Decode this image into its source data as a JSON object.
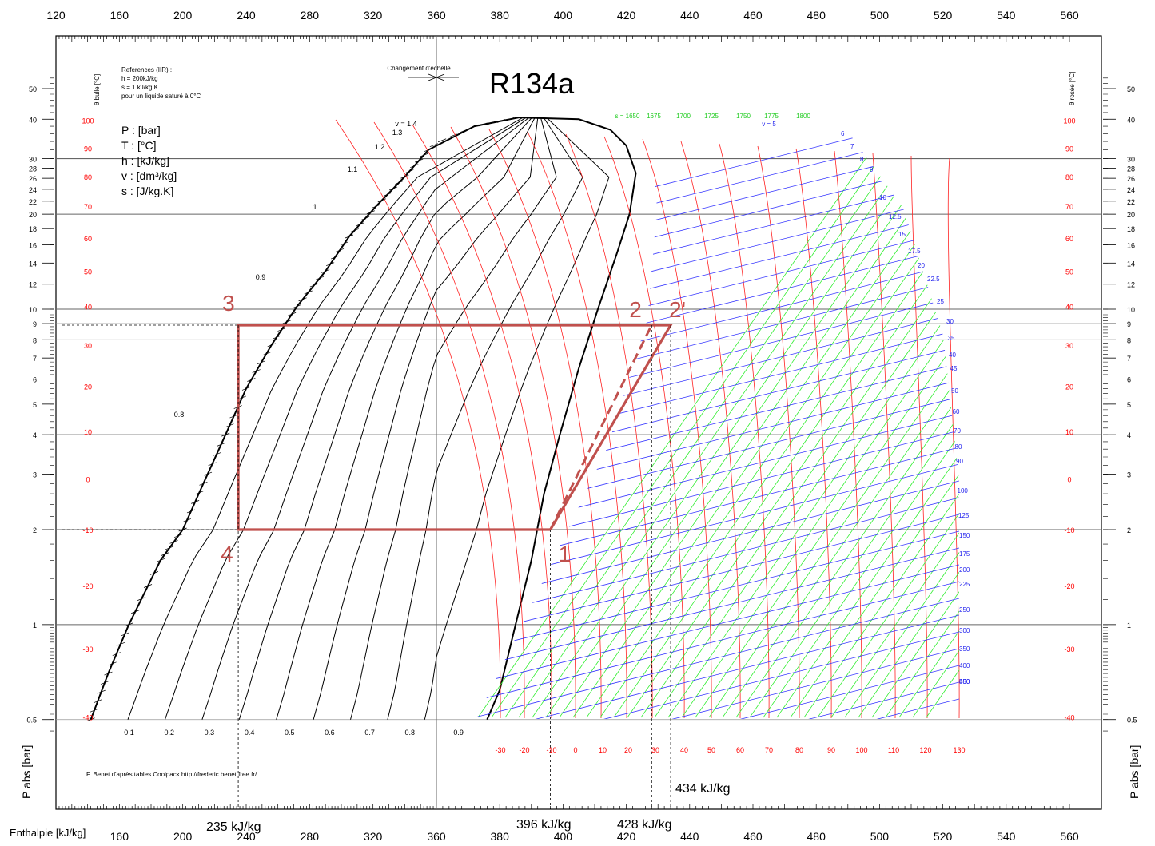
{
  "chart_data": {
    "type": "line",
    "title": "R134a",
    "xlabel": "Enthalpie [kJ/kg]",
    "ylabel": "P abs [bar]",
    "x_scale": "piecewise linear (scale change at 360 kJ/kg)",
    "y_scale": "log",
    "xlim": [
      120,
      560
    ],
    "ylim": [
      0.45,
      60
    ],
    "top_ticks": [
      120,
      160,
      200,
      240,
      280,
      320,
      360,
      380,
      400,
      420,
      440,
      460,
      480,
      500,
      520,
      540,
      560
    ],
    "bottom_ticks": [
      160,
      200,
      240,
      280,
      320,
      360,
      380,
      400,
      420,
      440,
      460,
      480,
      500,
      520,
      540,
      560
    ],
    "pressure_ticks": [
      0.5,
      1,
      2,
      3,
      4,
      5,
      6,
      7,
      8,
      9,
      10,
      12,
      14,
      16,
      18,
      20,
      22,
      24,
      26,
      28,
      30,
      40,
      50
    ],
    "temp_labels_left": [
      100,
      90,
      80,
      70,
      60,
      50,
      40,
      30,
      20,
      10,
      0,
      -10,
      -20,
      -30,
      -40
    ],
    "temp_labels_right": [
      100,
      90,
      80,
      70,
      60,
      50,
      40,
      30,
      20,
      10,
      0,
      -10,
      -20,
      -30,
      -40
    ],
    "axis_side_left": "θ bulle [°C]",
    "axis_side_right": "θ rosée [°C]",
    "scale_change": "Changement d'échelle",
    "reference_lines": [
      "References (IIR) :",
      "h = 200kJ/kg",
      "s = 1 kJ/kg.K",
      "pour un liquide saturé à 0°C"
    ],
    "units_legend": [
      "P : [bar]",
      "T : [°C]",
      "h : [kJ/kg]",
      "v : [dm³/kg]",
      "s : [J/kg.K]"
    ],
    "credit": "F. Benet d'après tables Coolpack http://frederic.benet.free.fr/",
    "quality_labels": [
      "0.1",
      "0.2",
      "0.3",
      "0.4",
      "0.5",
      "0.6",
      "0.7",
      "0.8",
      "0.9"
    ],
    "volume_labels_liquid": [
      "v = 1.4",
      "1.3",
      "1.2",
      "1.1",
      "1",
      "0.9",
      "0.8"
    ],
    "entropy_labels": [
      "s = 1650",
      "1675",
      "1700",
      "1725",
      "1750",
      "1775",
      "1800"
    ],
    "volume_labels_vapor": [
      "v = 5",
      "6",
      "7",
      "8",
      "9",
      "10",
      "12.5",
      "15",
      "17.5",
      "20",
      "22.5",
      "25",
      "30",
      "35",
      "40",
      "45",
      "50",
      "60",
      "70",
      "80",
      "90",
      "100",
      "125",
      "150",
      "175",
      "200",
      "225",
      "250",
      "300",
      "350",
      "400",
      "450",
      "500"
    ],
    "temp_labels_bottom": [
      "-30",
      "-20",
      "-10",
      "0",
      "10",
      "20",
      "30",
      "40",
      "50",
      "60",
      "70",
      "80",
      "90",
      "100",
      "110",
      "120",
      "130"
    ],
    "saturation_liquid": [
      {
        "h": 142,
        "p": 0.5
      },
      {
        "h": 153,
        "p": 0.7
      },
      {
        "h": 166,
        "p": 1.0
      },
      {
        "h": 186,
        "p": 1.6
      },
      {
        "h": 200,
        "p": 2.0
      },
      {
        "h": 213,
        "p": 2.8
      },
      {
        "h": 227,
        "p": 4.0
      },
      {
        "h": 240,
        "p": 5.6
      },
      {
        "h": 256,
        "p": 7.7
      },
      {
        "h": 272,
        "p": 10.2
      },
      {
        "h": 290,
        "p": 13.2
      },
      {
        "h": 305,
        "p": 17.0
      },
      {
        "h": 322,
        "p": 21.2
      },
      {
        "h": 340,
        "p": 26.3
      },
      {
        "h": 355,
        "p": 32.0
      },
      {
        "h": 372,
        "p": 38.0
      },
      {
        "h": 386,
        "p": 40.5
      }
    ],
    "saturation_vapor": [
      {
        "h": 386,
        "p": 40.5
      },
      {
        "h": 405,
        "p": 40.0
      },
      {
        "h": 415,
        "p": 37.0
      },
      {
        "h": 420,
        "p": 33.0
      },
      {
        "h": 423,
        "p": 27.0
      },
      {
        "h": 421,
        "p": 20.0
      },
      {
        "h": 417,
        "p": 15.0
      },
      {
        "h": 411,
        "p": 10.0
      },
      {
        "h": 405,
        "p": 6.5
      },
      {
        "h": 399,
        "p": 4.0
      },
      {
        "h": 394,
        "p": 2.6
      },
      {
        "h": 390,
        "p": 1.6
      },
      {
        "h": 385,
        "p": 1.0
      },
      {
        "h": 380,
        "p": 0.62
      },
      {
        "h": 376,
        "p": 0.5
      }
    ],
    "cycle": {
      "points": [
        {
          "label": "1",
          "h": 396,
          "p": 2.0
        },
        {
          "label": "2",
          "h": 428,
          "p": 8.9
        },
        {
          "label": "2'",
          "h": 434,
          "p": 8.9
        },
        {
          "label": "3",
          "h": 235,
          "p": 8.9
        },
        {
          "label": "4",
          "h": 235,
          "p": 2.0
        }
      ],
      "path": [
        "1",
        "2'",
        "3",
        "4",
        "1"
      ],
      "isentropic_dashed": [
        "1",
        "2"
      ],
      "color": "#c0504d"
    },
    "annotations": [
      "235 kJ/kg",
      "396 kJ/kg",
      "428 kJ/kg",
      "434 kJ/kg"
    ],
    "colors": {
      "temperature": "#ff0000",
      "entropy": "#00dd00",
      "volume": "#0000ff",
      "cycle": "#c0504d",
      "grid": "#000000"
    }
  }
}
